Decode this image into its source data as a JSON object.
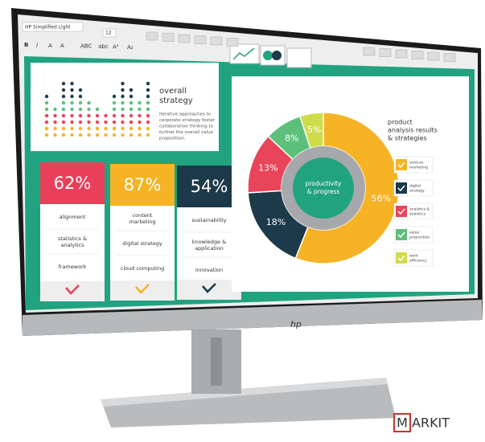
{
  "toolbar": {
    "font": "HP Simplified Light",
    "size": "12",
    "buttons": [
      "B",
      "I",
      "A",
      "A",
      "ABC",
      "abc",
      "A²",
      "A₂"
    ]
  },
  "strategy": {
    "title_lines": [
      "overall",
      "strategy"
    ],
    "text_lines": [
      "Iterative approaches to",
      "corporate strategy foster",
      "collaborative thinking to",
      "further the overall value",
      "proposition."
    ],
    "dot_chart": {
      "values": [
        7,
        5,
        9,
        9,
        8,
        6,
        5,
        4,
        7,
        9,
        8,
        6,
        9
      ],
      "row_colors": [
        "#f5b325",
        "#f5b325",
        "#e8455a",
        "#e8455a",
        "#5cc07a",
        "#5cc07a",
        "#1d3a4a",
        "#1d3a4a",
        "#1d3a4a"
      ]
    }
  },
  "cards": [
    {
      "percent": "62%",
      "color": "#ea3f5a",
      "items": [
        [
          "alignment"
        ],
        [
          "statistics &",
          "analytics"
        ],
        [
          "framework"
        ]
      ]
    },
    {
      "percent": "87%",
      "color": "#f5b325",
      "items": [
        [
          "content",
          "marketing"
        ],
        [
          "digital strategy"
        ],
        [
          "cloud computing"
        ]
      ]
    },
    {
      "percent": "54%",
      "color": "#1d3a4a",
      "items": [
        [
          "sustainability"
        ],
        [
          "knowledge &",
          "application"
        ],
        [
          "innovation"
        ]
      ]
    }
  ],
  "chart_data": {
    "type": "pie",
    "center_label": [
      "productivity",
      "& progress"
    ],
    "values": [
      56,
      18,
      13,
      8,
      5
    ],
    "value_labels": [
      "56%",
      "18%",
      "13%",
      "8%",
      "5%"
    ],
    "colors": [
      "#f5b325",
      "#1d3a4a",
      "#e8455a",
      "#5cc07a",
      "#cfdc4a"
    ]
  },
  "analysis": {
    "title_lines": [
      "product",
      "analysis results",
      "& strategies"
    ],
    "items": [
      {
        "label": [
          "venture",
          "marketing"
        ],
        "color": "#f5b325"
      },
      {
        "label": [
          "digital",
          "strategy"
        ],
        "color": "#1d3a4a"
      },
      {
        "label": [
          "analytics &",
          "statistics"
        ],
        "color": "#e8455a"
      },
      {
        "label": [
          "value",
          "proposition"
        ],
        "color": "#5cc07a"
      },
      {
        "label": [
          "work",
          "efficiency"
        ],
        "color": "#cfdc4a"
      }
    ]
  },
  "logo": "hp",
  "watermark": {
    "box": "M",
    "rest": "ARKIT"
  }
}
